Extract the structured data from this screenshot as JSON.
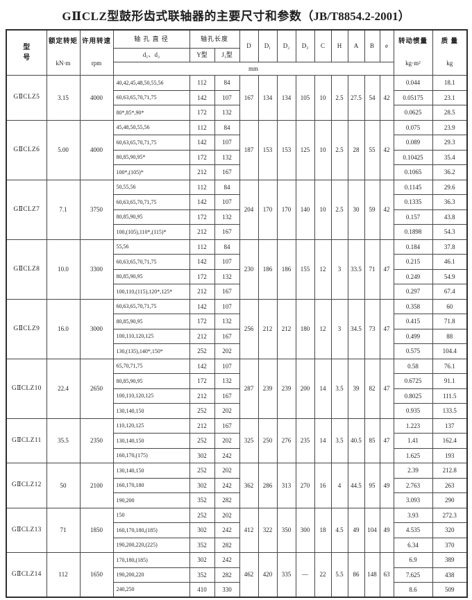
{
  "title": {
    "main": "GⅡCLZ型鼓形齿式联轴器的主要尺寸和参数",
    "ref": "（JB/T8854.2-2001）"
  },
  "table": {
    "header": {
      "model": "型号",
      "torque_label": "额定转矩",
      "torque_unit": "kN·m",
      "speed_label": "许用转速",
      "speed_unit": "rpm",
      "bore_label": "轴 孔 直 径",
      "bore_sub": "d₁、d₂",
      "length_label": "轴孔长度",
      "length_y": "Y型",
      "length_j": "J₁型",
      "dims": [
        "D",
        "D₁",
        "D₂",
        "D₃",
        "C",
        "H",
        "A",
        "B",
        "e"
      ],
      "unit_row": "mm",
      "inertia_label": "转动惯量",
      "inertia_unit": "kg·m²",
      "mass_label": "质 量",
      "mass_unit": "kg"
    },
    "groups": [
      {
        "model": "GⅡCLZ5",
        "torque": "3.15",
        "speed": "4000",
        "dims": [
          "167",
          "134",
          "134",
          "105",
          "10",
          "2.5",
          "27.5",
          "54",
          "42"
        ],
        "rows": [
          {
            "bores": "40,42,45,48,50,55,56",
            "y": "112",
            "j": "84",
            "inertia": "0.044",
            "mass": "18.1"
          },
          {
            "bores": "60,63,65,70,71,75",
            "y": "142",
            "j": "107",
            "inertia": "0.05175",
            "mass": "23.1"
          },
          {
            "bores": "80*,85*,90*",
            "y": "172",
            "j": "132",
            "inertia": "0.0625",
            "mass": "28.5"
          }
        ]
      },
      {
        "model": "GⅡCLZ6",
        "torque": "5.00",
        "speed": "4000",
        "dims": [
          "187",
          "153",
          "153",
          "125",
          "10",
          "2.5",
          "28",
          "55",
          "42"
        ],
        "rows": [
          {
            "bores": "45,48,50,55,56",
            "y": "112",
            "j": "84",
            "inertia": "0.075",
            "mass": "23.9"
          },
          {
            "bores": "60,63,65,70,71,75",
            "y": "142",
            "j": "107",
            "inertia": "0.089",
            "mass": "29.3"
          },
          {
            "bores": "80,85,90,95*",
            "y": "172",
            "j": "132",
            "inertia": "0.10425",
            "mass": "35.4"
          },
          {
            "bores": "100*,(105)*",
            "y": "212",
            "j": "167",
            "inertia": "0.1065",
            "mass": "36.2"
          }
        ]
      },
      {
        "model": "GⅡCLZ7",
        "torque": "7.1",
        "speed": "3750",
        "dims": [
          "204",
          "170",
          "170",
          "140",
          "10",
          "2.5",
          "30",
          "59",
          "42"
        ],
        "rows": [
          {
            "bores": "50,55,56",
            "y": "112",
            "j": "84",
            "inertia": "0.1145",
            "mass": "29.6"
          },
          {
            "bores": "60,63,65,70,71,75",
            "y": "142",
            "j": "107",
            "inertia": "0.1335",
            "mass": "36.3"
          },
          {
            "bores": "80,85,90,95",
            "y": "172",
            "j": "132",
            "inertia": "0.157",
            "mass": "43.8"
          },
          {
            "bores": "100,(105),110*,(115)*",
            "y": "212",
            "j": "167",
            "inertia": "0.1898",
            "mass": "54.3"
          }
        ]
      },
      {
        "model": "GⅡCLZ8",
        "torque": "10.0",
        "speed": "3300",
        "dims": [
          "230",
          "186",
          "186",
          "155",
          "12",
          "3",
          "33.5",
          "71",
          "47"
        ],
        "rows": [
          {
            "bores": "55,56",
            "y": "112",
            "j": "84",
            "inertia": "0.184",
            "mass": "37.8"
          },
          {
            "bores": "60,63,65,70,71,75",
            "y": "142",
            "j": "107",
            "inertia": "0.215",
            "mass": "46.1"
          },
          {
            "bores": "80,85,90,95",
            "y": "172",
            "j": "132",
            "inertia": "0.249",
            "mass": "54.9"
          },
          {
            "bores": "100,110,(115),120*,125*",
            "y": "212",
            "j": "167",
            "inertia": "0.297",
            "mass": "67.4"
          }
        ]
      },
      {
        "model": "GⅡCLZ9",
        "torque": "16.0",
        "speed": "3000",
        "dims": [
          "256",
          "212",
          "212",
          "180",
          "12",
          "3",
          "34.5",
          "73",
          "47"
        ],
        "rows": [
          {
            "bores": "60,63,65,70,71,75",
            "y": "142",
            "j": "107",
            "inertia": "0.358",
            "mass": "60"
          },
          {
            "bores": "80,85,90,95",
            "y": "172",
            "j": "132",
            "inertia": "0.415",
            "mass": "71.8"
          },
          {
            "bores": "100,110,120,125",
            "y": "212",
            "j": "167",
            "inertia": "0.499",
            "mass": "88"
          },
          {
            "bores": "130,(135),140*,150*",
            "y": "252",
            "j": "202",
            "inertia": "0.575",
            "mass": "104.4"
          }
        ]
      },
      {
        "model": "GⅡCLZ10",
        "torque": "22.4",
        "speed": "2650",
        "dims": [
          "287",
          "239",
          "239",
          "200",
          "14",
          "3.5",
          "39",
          "82",
          "47"
        ],
        "rows": [
          {
            "bores": "65,70,71,75",
            "y": "142",
            "j": "107",
            "inertia": "0.58",
            "mass": "76.1"
          },
          {
            "bores": "80,85,90,95",
            "y": "172",
            "j": "132",
            "inertia": "0.6725",
            "mass": "91.1"
          },
          {
            "bores": "100,110,120,125",
            "y": "212",
            "j": "167",
            "inertia": "0.8025",
            "mass": "111.5"
          },
          {
            "bores": "130,140,150",
            "y": "252",
            "j": "202",
            "inertia": "0.935",
            "mass": "133.5"
          }
        ]
      },
      {
        "model": "GⅡCLZ11",
        "torque": "35.5",
        "speed": "2350",
        "dims": [
          "325",
          "250",
          "276",
          "235",
          "14",
          "3.5",
          "40.5",
          "85",
          "47"
        ],
        "rows": [
          {
            "bores": "110,120,125",
            "y": "212",
            "j": "167",
            "inertia": "1.223",
            "mass": "137"
          },
          {
            "bores": "130,140,150",
            "y": "252",
            "j": "202",
            "inertia": "1.41",
            "mass": "162.4"
          },
          {
            "bores": "160,170,(175)",
            "y": "302",
            "j": "242",
            "inertia": "1.625",
            "mass": "193"
          }
        ]
      },
      {
        "model": "GⅡCLZ12",
        "torque": "50",
        "speed": "2100",
        "dims": [
          "362",
          "286",
          "313",
          "270",
          "16",
          "4",
          "44.5",
          "95",
          "49"
        ],
        "rows": [
          {
            "bores": "130,140,150",
            "y": "252",
            "j": "202",
            "inertia": "2.39",
            "mass": "212.8"
          },
          {
            "bores": "160,170,180",
            "y": "302",
            "j": "242",
            "inertia": "2.763",
            "mass": "263"
          },
          {
            "bores": "190,200",
            "y": "352",
            "j": "282",
            "inertia": "3.093",
            "mass": "290"
          }
        ]
      },
      {
        "model": "GⅡCLZ13",
        "torque": "71",
        "speed": "1850",
        "dims": [
          "412",
          "322",
          "350",
          "300",
          "18",
          "4.5",
          "49",
          "104",
          "49"
        ],
        "rows": [
          {
            "bores": "150",
            "y": "252",
            "j": "202",
            "inertia": "3.93",
            "mass": "272.3"
          },
          {
            "bores": "160,170,180,(185)",
            "y": "302",
            "j": "242",
            "inertia": "4.535",
            "mass": "320"
          },
          {
            "bores": "190,200,220,(225)",
            "y": "352",
            "j": "282",
            "inertia": "6.34",
            "mass": "370"
          }
        ]
      },
      {
        "model": "GⅡCLZ14",
        "torque": "112",
        "speed": "1650",
        "dims": [
          "462",
          "420",
          "335",
          "—",
          "22",
          "5.5",
          "86",
          "148",
          "63"
        ],
        "rows": [
          {
            "bores": "170,180,(185)",
            "y": "302",
            "j": "242",
            "inertia": "6.9",
            "mass": "389"
          },
          {
            "bores": "190,200,220",
            "y": "352",
            "j": "282",
            "inertia": "7.625",
            "mass": "438"
          },
          {
            "bores": "240,250",
            "y": "410",
            "j": "330",
            "inertia": "8.6",
            "mass": "509"
          }
        ]
      }
    ]
  }
}
